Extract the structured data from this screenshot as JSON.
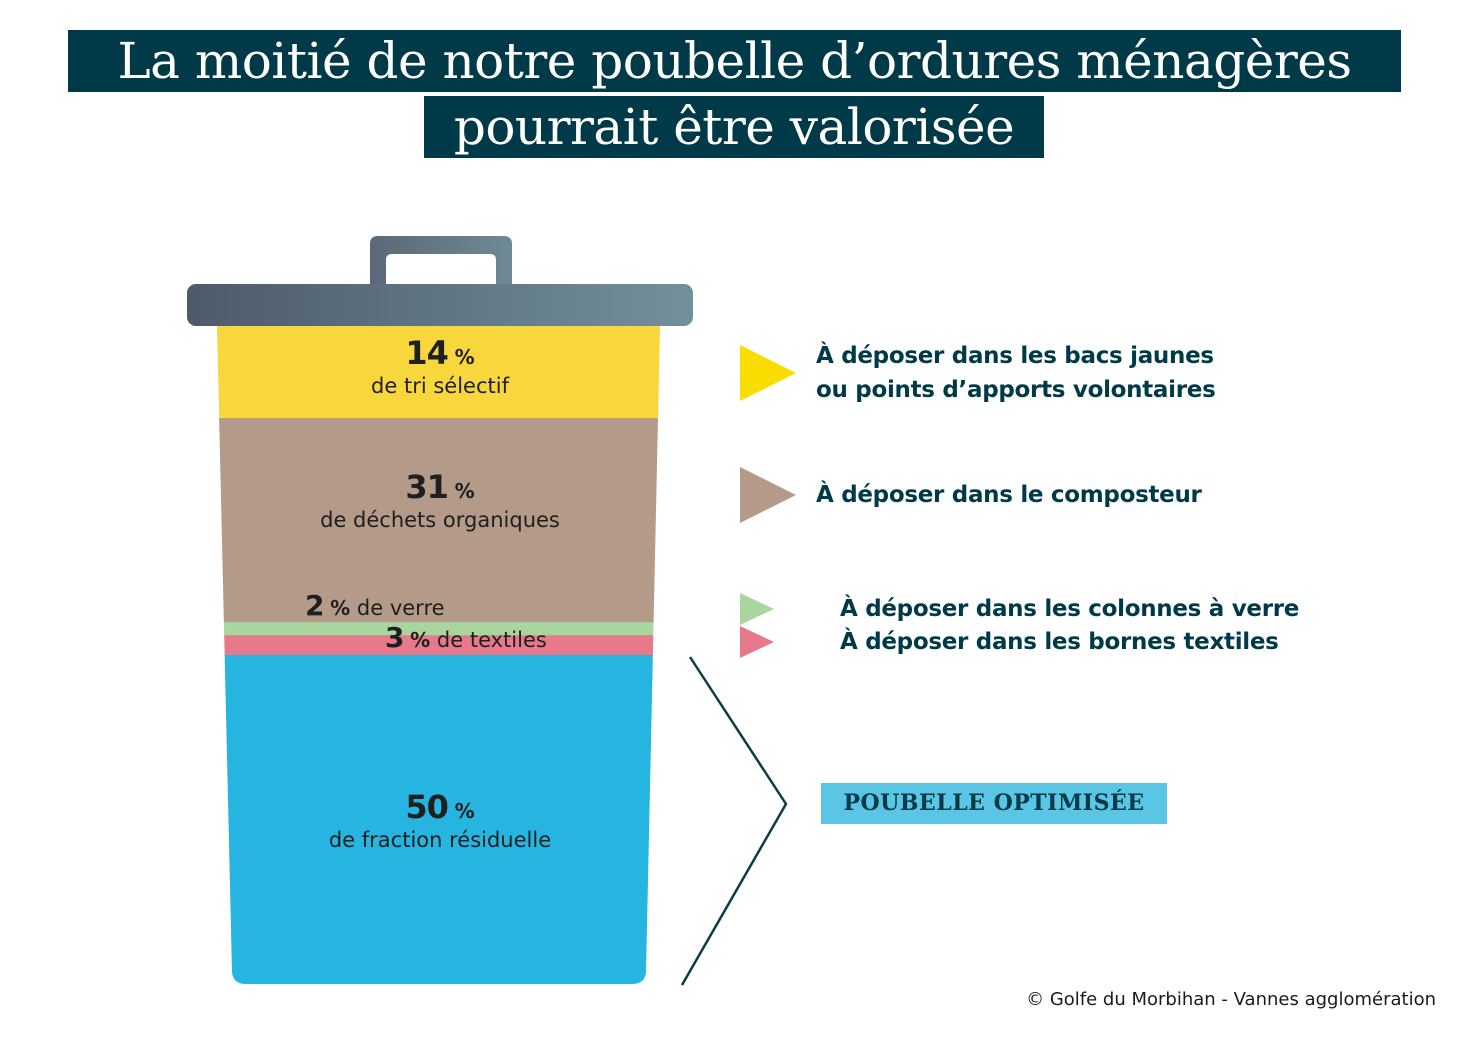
{
  "title": {
    "line1": "La moitié de notre poubelle d’ordures ménagères",
    "line2": "pourrait être valorisée"
  },
  "chart_data": {
    "type": "bar",
    "stacked": true,
    "orientation": "vertical",
    "unit": "%",
    "total": 100,
    "segments": [
      {
        "value": 14,
        "pct_text": "14",
        "unit_text": "%",
        "label": "de tri sélectif",
        "color": "#f8d73c"
      },
      {
        "value": 31,
        "pct_text": "31",
        "unit_text": "%",
        "label": "de déchets organiques",
        "color": "#b49a89"
      },
      {
        "value": 2,
        "pct_text": "2",
        "unit_text": "%",
        "label": "de verre",
        "color": "#a8d69e"
      },
      {
        "value": 3,
        "pct_text": "3",
        "unit_text": "%",
        "label": "de textiles",
        "color": "#e6798c"
      },
      {
        "value": 50,
        "pct_text": "50",
        "unit_text": "%",
        "label": "de fraction résiduelle",
        "color": "#25b5e0"
      }
    ]
  },
  "legend": [
    {
      "color": "#f9dc00",
      "line1": "À déposer dans les bacs jaunes",
      "line2": "ou points d’apports volontaires"
    },
    {
      "color": "#b49a89",
      "line1": "À déposer dans le composteur"
    },
    {
      "color": "#a8d69e",
      "line1": "À déposer dans les colonnes à verre"
    },
    {
      "color": "#e6798c",
      "line1": "À déposer dans les bornes textiles"
    }
  ],
  "badge": {
    "text": "POUBELLE OPTIMISÉE",
    "color": "#5bc5e6"
  },
  "bin": {
    "lid_color_left": "#4e5a6c",
    "lid_color_right": "#6e8c96"
  },
  "copyright": "© Golfe du Morbihan - Vannes agglomération",
  "colors": {
    "title_bg": "#003a48",
    "text_dark": "#003a48"
  }
}
